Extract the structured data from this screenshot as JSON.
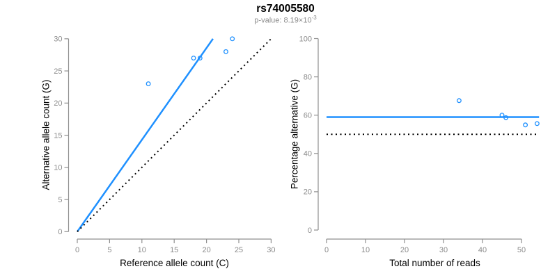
{
  "title": "rs74005580",
  "subtitle": {
    "label": "p-value",
    "prefix": "p-value: 8.19×10",
    "exponent": "-3",
    "value_scientific": "8.19e-3"
  },
  "colors": {
    "accent_blue": "#1E90FF",
    "dotted_black": "#000000",
    "axis_line": "#8f8f8f",
    "tick_label": "#8c8c8c",
    "axis_title": "#000000",
    "subtitle_gray": "#8c8c8c"
  },
  "chart_data": [
    {
      "type": "scatter",
      "panel": "left",
      "xlabel": "Reference allele count (C)",
      "ylabel": "Alternative allele count (G)",
      "xlim": [
        0,
        30
      ],
      "ylim": [
        0,
        30
      ],
      "xticks": [
        0,
        5,
        10,
        15,
        20,
        25,
        30
      ],
      "yticks": [
        0,
        5,
        10,
        15,
        20,
        25,
        30
      ],
      "grid": false,
      "legend": false,
      "points": [
        [
          11,
          23
        ],
        [
          18,
          27
        ],
        [
          19,
          27
        ],
        [
          23,
          28
        ],
        [
          24,
          30
        ]
      ],
      "point_color": "#1E90FF",
      "lines": [
        {
          "name": "fitted-line",
          "style": "solid",
          "color": "#1E90FF",
          "width": 2.5,
          "x": [
            0,
            21
          ],
          "y": [
            0,
            30
          ],
          "slope": 1.42,
          "intercept": 0
        },
        {
          "name": "identity-line",
          "style": "dotted",
          "color": "#000000",
          "width": 2,
          "x": [
            0,
            30
          ],
          "y": [
            0,
            30
          ],
          "slope": 1,
          "intercept": 0
        }
      ]
    },
    {
      "type": "scatter",
      "panel": "right",
      "xlabel": "Total number of reads",
      "ylabel": "Percentage alternative (G)",
      "xlim": [
        0,
        55.5
      ],
      "ylim": [
        0,
        100
      ],
      "xticks": [
        0,
        10,
        20,
        30,
        40,
        50
      ],
      "yticks": [
        0,
        20,
        40,
        60,
        80,
        100
      ],
      "grid": false,
      "legend": false,
      "points": [
        [
          34,
          67.6
        ],
        [
          45,
          60.0
        ],
        [
          46,
          58.7
        ],
        [
          51,
          54.9
        ],
        [
          54,
          55.6
        ]
      ],
      "point_color": "#1E90FF",
      "lines": [
        {
          "name": "mean-percentage-line",
          "style": "solid",
          "color": "#1E90FF",
          "width": 2.5,
          "x": [
            0,
            54.5
          ],
          "y": [
            59,
            59
          ]
        },
        {
          "name": "expected-50pct-line",
          "style": "dotted",
          "color": "#000000",
          "width": 2,
          "x": [
            0,
            54.5
          ],
          "y": [
            50,
            50
          ]
        }
      ]
    }
  ]
}
